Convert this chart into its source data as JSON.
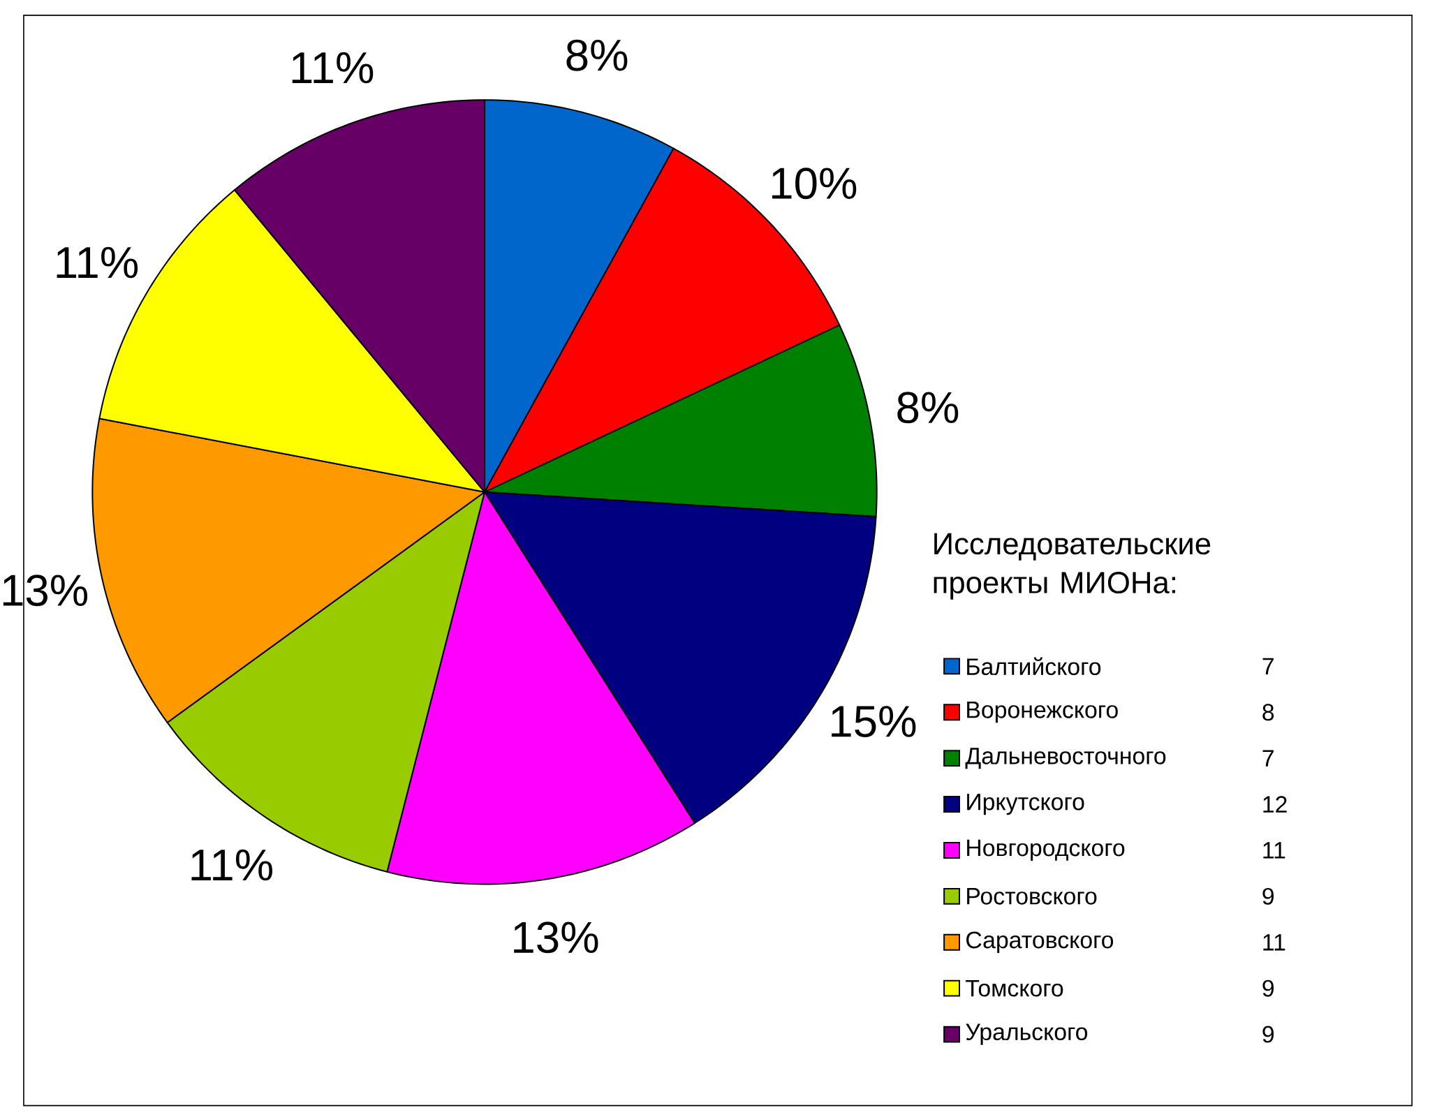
{
  "chart_data": {
    "type": "pie",
    "legend_title": "Исследовательские проекты МИОНа:",
    "categories": [
      "Балтийского",
      "Воронежского",
      "Дальневосточного",
      "Иркутского",
      "Новгородского",
      "Ростовского",
      "Саратовского",
      "Томского",
      "Уральского"
    ],
    "values": [
      8,
      10,
      8,
      15,
      13,
      11,
      13,
      11,
      11
    ],
    "annotations": [
      "7",
      "8",
      "7",
      "12",
      "11",
      "9",
      "11",
      "9",
      "9"
    ],
    "value_labels": [
      "8%",
      "10%",
      "8%",
      "15%",
      "13%",
      "11%",
      "13%",
      "11%",
      "11%"
    ],
    "colors": [
      "#0066cc",
      "#ff0000",
      "#008000",
      "#000080",
      "#ff00ff",
      "#99cc00",
      "#ff9900",
      "#ffff00",
      "#660066"
    ],
    "legend": "right"
  }
}
